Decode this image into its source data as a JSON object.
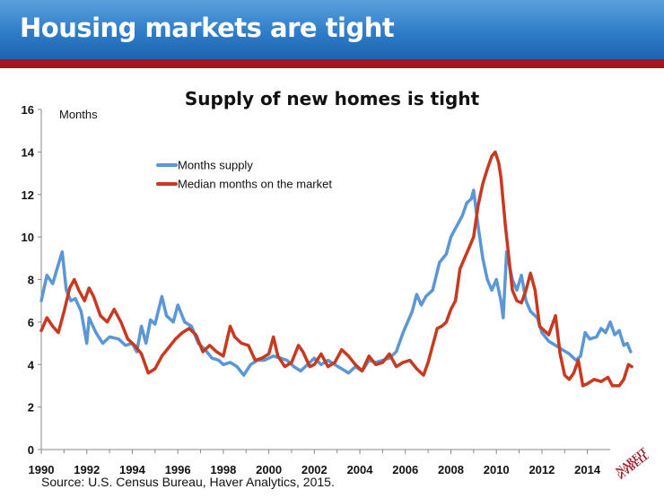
{
  "slide": {
    "title": "Housing markets are tight",
    "source": "Source: U.S. Census Bureau, Haver Analytics, 2015.",
    "logo_text": "NAREIT"
  },
  "colors": {
    "banner": "#2f7cc8",
    "red_bar": "#a3161b",
    "months_supply": "#5b96d6",
    "median_months": "#c8391f"
  },
  "chart_data": {
    "type": "line",
    "title": "Supply of new homes is tight",
    "ylabel": "Months",
    "xlabel": "",
    "xlim": [
      1990,
      2015
    ],
    "ylim": [
      0,
      16
    ],
    "x_ticks": [
      "1990",
      "1992",
      "1994",
      "1996",
      "1998",
      "2000",
      "2002",
      "2004",
      "2006",
      "2008",
      "2010",
      "2012",
      "2014"
    ],
    "y_ticks": [
      "0",
      "2",
      "4",
      "6",
      "8",
      "10",
      "12",
      "14",
      "16"
    ],
    "legend_position": "top-left",
    "series": [
      {
        "name": "Months supply",
        "color": "#5b96d6",
        "points": [
          [
            1990.0,
            7.0
          ],
          [
            1990.25,
            8.2
          ],
          [
            1990.5,
            7.8
          ],
          [
            1990.75,
            8.7
          ],
          [
            1990.92,
            9.3
          ],
          [
            1991.1,
            7.5
          ],
          [
            1991.3,
            7.0
          ],
          [
            1991.5,
            7.1
          ],
          [
            1991.75,
            6.5
          ],
          [
            1992.0,
            5.0
          ],
          [
            1992.1,
            6.2
          ],
          [
            1992.4,
            5.5
          ],
          [
            1992.7,
            5.0
          ],
          [
            1993.0,
            5.3
          ],
          [
            1993.4,
            5.2
          ],
          [
            1993.7,
            4.9
          ],
          [
            1994.0,
            5.0
          ],
          [
            1994.2,
            4.6
          ],
          [
            1994.4,
            5.8
          ],
          [
            1994.6,
            5.0
          ],
          [
            1994.8,
            6.1
          ],
          [
            1995.0,
            5.9
          ],
          [
            1995.3,
            7.2
          ],
          [
            1995.5,
            6.3
          ],
          [
            1995.8,
            6.0
          ],
          [
            1996.0,
            6.8
          ],
          [
            1996.3,
            6.0
          ],
          [
            1996.6,
            5.8
          ],
          [
            1996.9,
            5.0
          ],
          [
            1997.2,
            4.7
          ],
          [
            1997.5,
            4.3
          ],
          [
            1997.8,
            4.2
          ],
          [
            1998.0,
            4.0
          ],
          [
            1998.3,
            4.1
          ],
          [
            1998.6,
            3.9
          ],
          [
            1998.9,
            3.5
          ],
          [
            1999.2,
            4.0
          ],
          [
            1999.5,
            4.2
          ],
          [
            1999.8,
            4.2
          ],
          [
            2000.2,
            4.4
          ],
          [
            2000.5,
            4.3
          ],
          [
            2000.8,
            4.2
          ],
          [
            2001.1,
            3.9
          ],
          [
            2001.4,
            3.7
          ],
          [
            2001.7,
            4.0
          ],
          [
            2002.0,
            4.3
          ],
          [
            2002.3,
            4.0
          ],
          [
            2002.6,
            4.2
          ],
          [
            2002.9,
            4.0
          ],
          [
            2003.2,
            3.8
          ],
          [
            2003.5,
            3.6
          ],
          [
            2003.8,
            3.9
          ],
          [
            2004.1,
            3.7
          ],
          [
            2004.4,
            4.2
          ],
          [
            2004.7,
            4.1
          ],
          [
            2005.0,
            4.2
          ],
          [
            2005.3,
            4.3
          ],
          [
            2005.6,
            4.6
          ],
          [
            2005.9,
            5.5
          ],
          [
            2006.1,
            6.0
          ],
          [
            2006.3,
            6.5
          ],
          [
            2006.5,
            7.3
          ],
          [
            2006.7,
            6.8
          ],
          [
            2006.9,
            7.2
          ],
          [
            2007.2,
            7.5
          ],
          [
            2007.5,
            8.8
          ],
          [
            2007.8,
            9.2
          ],
          [
            2008.0,
            10.0
          ],
          [
            2008.3,
            10.6
          ],
          [
            2008.5,
            11.0
          ],
          [
            2008.7,
            11.6
          ],
          [
            2008.9,
            11.8
          ],
          [
            2009.0,
            12.2
          ],
          [
            2009.2,
            10.5
          ],
          [
            2009.4,
            9.0
          ],
          [
            2009.6,
            8.0
          ],
          [
            2009.8,
            7.5
          ],
          [
            2010.0,
            8.0
          ],
          [
            2010.2,
            7.0
          ],
          [
            2010.3,
            6.2
          ],
          [
            2010.45,
            9.3
          ],
          [
            2010.7,
            8.0
          ],
          [
            2010.9,
            7.5
          ],
          [
            2011.1,
            8.2
          ],
          [
            2011.3,
            7.0
          ],
          [
            2011.5,
            6.5
          ],
          [
            2011.8,
            6.2
          ],
          [
            2012.0,
            5.5
          ],
          [
            2012.3,
            5.1
          ],
          [
            2012.6,
            4.9
          ],
          [
            2012.9,
            4.7
          ],
          [
            2013.2,
            4.5
          ],
          [
            2013.5,
            4.2
          ],
          [
            2013.7,
            4.4
          ],
          [
            2013.9,
            5.5
          ],
          [
            2014.1,
            5.2
          ],
          [
            2014.4,
            5.3
          ],
          [
            2014.6,
            5.7
          ],
          [
            2014.8,
            5.5
          ],
          [
            2015.0,
            6.0
          ],
          [
            2015.2,
            5.4
          ],
          [
            2015.4,
            5.6
          ],
          [
            2015.6,
            4.9
          ],
          [
            2015.75,
            5.0
          ],
          [
            2015.9,
            4.6
          ]
        ]
      },
      {
        "name": "Median months on the market",
        "color": "#c8391f",
        "points": [
          [
            1990.0,
            5.6
          ],
          [
            1990.25,
            6.2
          ],
          [
            1990.5,
            5.8
          ],
          [
            1990.75,
            5.5
          ],
          [
            1991.0,
            6.5
          ],
          [
            1991.25,
            7.6
          ],
          [
            1991.45,
            8.0
          ],
          [
            1991.65,
            7.5
          ],
          [
            1991.9,
            7.0
          ],
          [
            1992.1,
            7.6
          ],
          [
            1992.3,
            7.2
          ],
          [
            1992.6,
            6.3
          ],
          [
            1992.9,
            6.0
          ],
          [
            1993.2,
            6.6
          ],
          [
            1993.5,
            6.0
          ],
          [
            1993.8,
            5.2
          ],
          [
            1994.1,
            4.9
          ],
          [
            1994.4,
            4.5
          ],
          [
            1994.7,
            3.6
          ],
          [
            1995.0,
            3.8
          ],
          [
            1995.3,
            4.4
          ],
          [
            1995.6,
            4.8
          ],
          [
            1995.9,
            5.2
          ],
          [
            1996.2,
            5.5
          ],
          [
            1996.5,
            5.7
          ],
          [
            1996.8,
            5.4
          ],
          [
            1997.1,
            4.6
          ],
          [
            1997.4,
            4.9
          ],
          [
            1997.7,
            4.6
          ],
          [
            1998.0,
            4.4
          ],
          [
            1998.3,
            5.8
          ],
          [
            1998.5,
            5.3
          ],
          [
            1998.8,
            5.0
          ],
          [
            1999.1,
            4.9
          ],
          [
            1999.4,
            4.2
          ],
          [
            1999.7,
            4.3
          ],
          [
            2000.0,
            4.5
          ],
          [
            2000.2,
            5.3
          ],
          [
            2000.4,
            4.4
          ],
          [
            2000.7,
            3.9
          ],
          [
            2001.0,
            4.1
          ],
          [
            2001.3,
            4.9
          ],
          [
            2001.5,
            4.6
          ],
          [
            2001.8,
            3.9
          ],
          [
            2002.0,
            4.0
          ],
          [
            2002.3,
            4.5
          ],
          [
            2002.6,
            3.9
          ],
          [
            2002.9,
            4.1
          ],
          [
            2003.2,
            4.7
          ],
          [
            2003.5,
            4.4
          ],
          [
            2003.8,
            4.0
          ],
          [
            2004.1,
            3.7
          ],
          [
            2004.4,
            4.4
          ],
          [
            2004.7,
            4.0
          ],
          [
            2005.0,
            4.1
          ],
          [
            2005.3,
            4.5
          ],
          [
            2005.6,
            3.9
          ],
          [
            2005.9,
            4.1
          ],
          [
            2006.2,
            4.2
          ],
          [
            2006.5,
            3.8
          ],
          [
            2006.8,
            3.5
          ],
          [
            2007.0,
            4.1
          ],
          [
            2007.2,
            4.9
          ],
          [
            2007.4,
            5.7
          ],
          [
            2007.6,
            5.8
          ],
          [
            2007.8,
            6.0
          ],
          [
            2008.0,
            6.6
          ],
          [
            2008.2,
            7.0
          ],
          [
            2008.4,
            8.5
          ],
          [
            2008.6,
            9.0
          ],
          [
            2008.8,
            9.5
          ],
          [
            2009.0,
            10.0
          ],
          [
            2009.2,
            11.5
          ],
          [
            2009.4,
            12.5
          ],
          [
            2009.6,
            13.2
          ],
          [
            2009.8,
            13.8
          ],
          [
            2009.95,
            14.0
          ],
          [
            2010.1,
            13.5
          ],
          [
            2010.2,
            12.8
          ],
          [
            2010.4,
            10.5
          ],
          [
            2010.5,
            9.5
          ],
          [
            2010.7,
            7.5
          ],
          [
            2010.9,
            7.0
          ],
          [
            2011.1,
            6.9
          ],
          [
            2011.3,
            7.5
          ],
          [
            2011.5,
            8.3
          ],
          [
            2011.7,
            7.5
          ],
          [
            2011.9,
            5.8
          ],
          [
            2012.1,
            5.6
          ],
          [
            2012.3,
            5.4
          ],
          [
            2012.6,
            6.3
          ],
          [
            2012.8,
            4.5
          ],
          [
            2013.0,
            3.5
          ],
          [
            2013.2,
            3.3
          ],
          [
            2013.4,
            3.6
          ],
          [
            2013.6,
            4.2
          ],
          [
            2013.8,
            3.0
          ],
          [
            2014.0,
            3.1
          ],
          [
            2014.3,
            3.3
          ],
          [
            2014.6,
            3.2
          ],
          [
            2014.9,
            3.4
          ],
          [
            2015.1,
            3.0
          ],
          [
            2015.4,
            3.0
          ],
          [
            2015.6,
            3.3
          ],
          [
            2015.8,
            4.0
          ],
          [
            2015.95,
            3.9
          ]
        ]
      }
    ]
  }
}
